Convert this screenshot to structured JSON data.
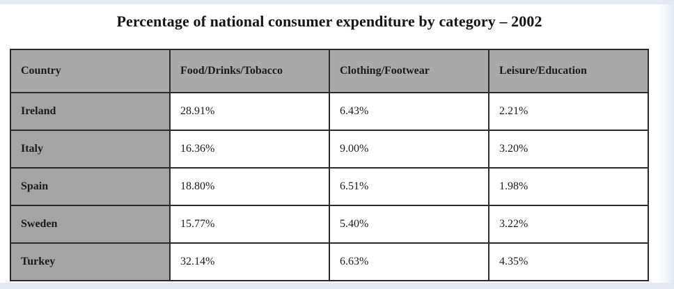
{
  "chart_data": {
    "type": "table",
    "title": "Percentage of national consumer expenditure by category – 2002",
    "columns": [
      "Country",
      "Food/Drinks/Tobacco",
      "Clothing/Footwear",
      "Leisure/Education"
    ],
    "rows": [
      {
        "country": "Ireland",
        "values": [
          "28.91%",
          "6.43%",
          "2.21%"
        ]
      },
      {
        "country": "Italy",
        "values": [
          "16.36%",
          "9.00%",
          "3.20%"
        ]
      },
      {
        "country": "Spain",
        "values": [
          "18.80%",
          "6.51%",
          "1.98%"
        ]
      },
      {
        "country": "Sweden",
        "values": [
          "15.77%",
          "5.40%",
          "3.22%"
        ]
      },
      {
        "country": "Turkey",
        "values": [
          "32.14%",
          "6.63%",
          "4.35%"
        ]
      }
    ],
    "colors": {
      "header_fill": "#a9a9a9",
      "row_header_fill": "#a4a4a4",
      "cell_fill": "#ffffff",
      "border": "#2a2a2a",
      "background": "#e3e8f1"
    }
  }
}
